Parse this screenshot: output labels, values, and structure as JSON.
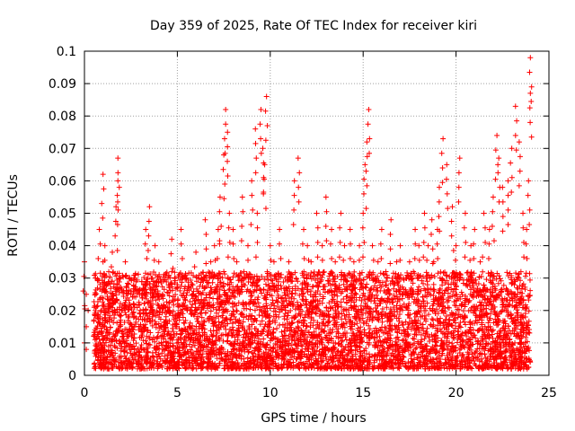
{
  "chart_data": {
    "type": "scatter",
    "title": "Day 359 of 2025, Rate Of TEC Index for receiver kiri",
    "xlabel": "GPS time / hours",
    "ylabel": "ROTI / TECUs",
    "xlim": [
      0,
      25
    ],
    "ylim": [
      0,
      0.1
    ],
    "xticks": [
      "0",
      "5",
      "10",
      "15",
      "20",
      "25"
    ],
    "yticks": [
      "0",
      "0.01",
      "0.02",
      "0.03",
      "0.04",
      "0.05",
      "0.06",
      "0.07",
      "0.08",
      "0.09",
      "0.1"
    ],
    "grid": true,
    "marker": "+",
    "color": "#ff0000",
    "series": [
      {
        "x": [
          0.0,
          0.0,
          0.1,
          0.1,
          0.1,
          0.2,
          0.5,
          0.6,
          0.7,
          0.8,
          0.9,
          1.0,
          1.0,
          1.1,
          1.1,
          1.2,
          1.3,
          1.5,
          1.7,
          1.8,
          1.8,
          1.9,
          2.0,
          2.2,
          2.5,
          2.7,
          3.0,
          3.3,
          3.5,
          3.6,
          3.8,
          4.0,
          4.2,
          4.5,
          4.7,
          5.0,
          5.2,
          5.5,
          5.7,
          6.0,
          6.3,
          6.5,
          6.8,
          7.0,
          7.2,
          7.3,
          7.5,
          7.6,
          7.7,
          7.8,
          8.0,
          8.2,
          8.5,
          8.8,
          9.0,
          9.2,
          9.3,
          9.5,
          9.6,
          9.7,
          9.8,
          10.0,
          10.2,
          10.5,
          10.8,
          11.0,
          11.3,
          11.5,
          11.8,
          12.0,
          12.2,
          12.5,
          12.8,
          13.0,
          13.3,
          13.5,
          13.8,
          14.0,
          14.3,
          14.5,
          14.8,
          15.0,
          15.1,
          15.2,
          15.3,
          15.5,
          15.8,
          16.0,
          16.3,
          16.5,
          16.8,
          17.0,
          17.3,
          17.5,
          17.8,
          18.0,
          18.3,
          18.5,
          18.7,
          18.8,
          19.0,
          19.1,
          19.3,
          19.5,
          19.8,
          20.0,
          20.2,
          20.5,
          20.8,
          21.0,
          21.3,
          21.5,
          21.8,
          22.0,
          22.2,
          22.3,
          22.5,
          22.8,
          23.0,
          23.2,
          23.4,
          23.6,
          23.8,
          23.9,
          24.0,
          24.0
        ],
        "y": [
          0.035,
          0.01,
          0.025,
          0.015,
          0.008,
          0.02,
          0.012,
          0.03,
          0.018,
          0.045,
          0.02,
          0.062,
          0.035,
          0.04,
          0.015,
          0.028,
          0.022,
          0.038,
          0.052,
          0.067,
          0.06,
          0.03,
          0.02,
          0.035,
          0.025,
          0.03,
          0.02,
          0.045,
          0.052,
          0.03,
          0.04,
          0.035,
          0.025,
          0.03,
          0.042,
          0.028,
          0.045,
          0.03,
          0.02,
          0.038,
          0.03,
          0.048,
          0.035,
          0.04,
          0.045,
          0.055,
          0.068,
          0.082,
          0.075,
          0.05,
          0.045,
          0.035,
          0.055,
          0.04,
          0.06,
          0.076,
          0.05,
          0.082,
          0.07,
          0.065,
          0.086,
          0.04,
          0.035,
          0.045,
          0.03,
          0.035,
          0.06,
          0.067,
          0.045,
          0.04,
          0.035,
          0.05,
          0.04,
          0.055,
          0.045,
          0.035,
          0.05,
          0.04,
          0.045,
          0.035,
          0.04,
          0.05,
          0.065,
          0.072,
          0.082,
          0.04,
          0.035,
          0.045,
          0.03,
          0.048,
          0.035,
          0.04,
          0.03,
          0.035,
          0.045,
          0.04,
          0.05,
          0.04,
          0.048,
          0.035,
          0.045,
          0.058,
          0.073,
          0.065,
          0.052,
          0.04,
          0.067,
          0.05,
          0.04,
          0.045,
          0.035,
          0.05,
          0.045,
          0.055,
          0.074,
          0.067,
          0.058,
          0.06,
          0.07,
          0.083,
          0.072,
          0.05,
          0.045,
          0.06,
          0.098,
          0.087
        ]
      }
    ],
    "dense_band": {
      "x_range": [
        0.5,
        24
      ],
      "y_range": [
        0.002,
        0.032
      ]
    }
  }
}
